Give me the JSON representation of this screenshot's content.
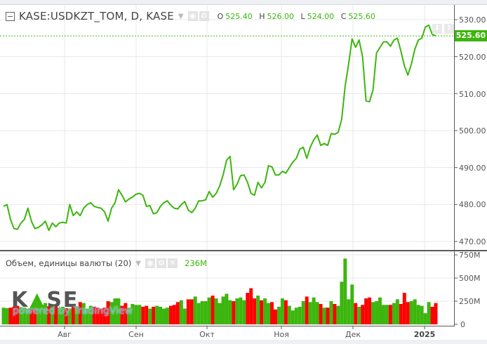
{
  "header": {
    "symbol": "KASE:USDKZT_TOM, D, KASE",
    "o_label": "O",
    "o": "525.40",
    "h_label": "H",
    "h": "526.00",
    "l_label": "L",
    "l": "524.00",
    "c_label": "C",
    "c": "525.60"
  },
  "volume_pane": {
    "title": "Объем, единицы валюты (20)",
    "value": "236M",
    "axis": [
      "750M",
      "500M",
      "250M",
      "0"
    ]
  },
  "price_axis": {
    "labels": [
      "530.00",
      "520.00",
      "510.00",
      "500.00",
      "490.00",
      "480.00",
      "470.00"
    ],
    "last_price": "525.60"
  },
  "time_axis": [
    "Авг",
    "Сен",
    "Окт",
    "Ноя",
    "Дек",
    "2025"
  ],
  "logo": {
    "text": "KASE",
    "powered": "powered by TradingView"
  },
  "colors": {
    "up": "#3cb60e",
    "down": "#ff0000",
    "line": "#3cb60e"
  },
  "icons": [
    "collapse-icon",
    "dropdown-caret-icon",
    "eye-icon",
    "gear-icon",
    "close-icon",
    "scale-down-icon",
    "scale-both-icon"
  ],
  "chart_data": {
    "type": "line",
    "ylim": [
      467,
      532
    ],
    "volume_ylim": [
      0,
      750
    ],
    "close": [
      479.5,
      480,
      476,
      473.5,
      473.3,
      475,
      476,
      479,
      475.5,
      473.5,
      473.8,
      474.5,
      475.5,
      473,
      475,
      474,
      475,
      475.2,
      475,
      480,
      477,
      478,
      477,
      479,
      480,
      480.5,
      479.5,
      479.2,
      479,
      478,
      475.5,
      479,
      480.5,
      484,
      482.5,
      480.7,
      481.5,
      482,
      482.8,
      483,
      482.5,
      479.5,
      479.7,
      477.5,
      477.8,
      479.5,
      480.5,
      481,
      479.8,
      479,
      478.8,
      480,
      480.8,
      478.5,
      477.8,
      479,
      481,
      481,
      481.3,
      483.5,
      482,
      483,
      485,
      488,
      492,
      493,
      484,
      485.5,
      487.8,
      488,
      486,
      483,
      482.5,
      486,
      484.5,
      486,
      490.5,
      490.2,
      488,
      488,
      489,
      488.5,
      490,
      491.5,
      492.5,
      495,
      495.5,
      492.5,
      495.5,
      497.5,
      498.8,
      496,
      496.5,
      496,
      499.2,
      499,
      499.5,
      503,
      512,
      518,
      524.8,
      522.5,
      524.5,
      520,
      508,
      507.8,
      511,
      521,
      522.5,
      524,
      524,
      522.8,
      524.5,
      525,
      521.5,
      517.5,
      515,
      518,
      522,
      524.5,
      525,
      528,
      528.5,
      526,
      525.6
    ],
    "volume": [
      180,
      175,
      180,
      190,
      200,
      185,
      180,
      170,
      175,
      190,
      200,
      210,
      230,
      195,
      215,
      200,
      180,
      190,
      175,
      170,
      200,
      195,
      240,
      230,
      170,
      200,
      190,
      180,
      170,
      180,
      250,
      240,
      280,
      280,
      200,
      230,
      180,
      220,
      210,
      210,
      190,
      200,
      170,
      190,
      200,
      190,
      170,
      180,
      200,
      210,
      240,
      260,
      170,
      270,
      270,
      300,
      230,
      250,
      250,
      290,
      310,
      280,
      230,
      300,
      330,
      260,
      250,
      280,
      290,
      260,
      340,
      390,
      280,
      310,
      260,
      280,
      230,
      240,
      160,
      190,
      280,
      260,
      200,
      150,
      180,
      190,
      250,
      300,
      240,
      290,
      240,
      220,
      180,
      180,
      250,
      220,
      200,
      460,
      710,
      270,
      430,
      230,
      190,
      210,
      280,
      290,
      240,
      250,
      290,
      210,
      210,
      210,
      230,
      270,
      220,
      340,
      240,
      250,
      270,
      210,
      200,
      120,
      240,
      190,
      230
    ]
  }
}
